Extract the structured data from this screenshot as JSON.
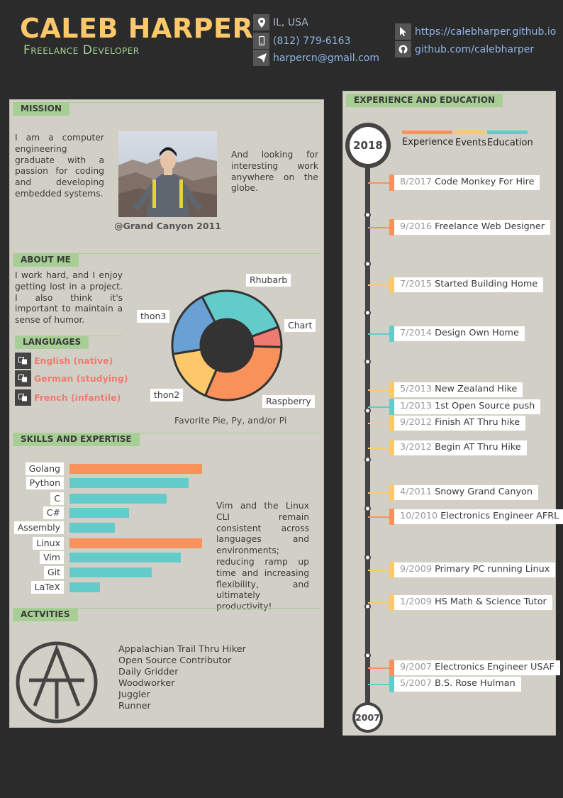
{
  "header": {
    "name": "CALEB HARPER",
    "title": "Freelance Developer",
    "contacts": {
      "location": "IL, USA",
      "phone": "(812) 779-6163",
      "email": "harpercn@gmail.com",
      "website": "https://calebharper.github.io",
      "github": "github.com/calebharper"
    },
    "icons": [
      "map-pin-icon",
      "phone-icon",
      "send-icon",
      "cursor-icon",
      "github-icon"
    ]
  },
  "colors": {
    "experience": "#f9915a",
    "events": "#fdc86a",
    "education": "#64cbcb",
    "section": "#a7cf95",
    "name": "#fdc86a"
  },
  "mission": {
    "heading": "MISSION",
    "text_left": "I am a computer engineering graduate with a passion for coding and developing embedded systems.",
    "text_right": "And looking for interesting work anywhere on the globe.",
    "caption": "@Grand Canyon 2011"
  },
  "about": {
    "heading": "ABOUT ME",
    "text": "I work hard, and I enjoy getting lost in a project. I also think it's important to maintain a sense of humor."
  },
  "languages": {
    "heading": "LANGUAGES",
    "items": [
      "English (native)",
      "German (studying)",
      "French (infantile)"
    ]
  },
  "chart_data": {
    "type": "pie",
    "title": "Favorite Pie, Py, and/or Pi",
    "slices": [
      {
        "label": "Chart",
        "value": 6,
        "color": "#ef7a72"
      },
      {
        "label": "Raspberry",
        "value": 31,
        "color": "#f9915a"
      },
      {
        "label": "thon2",
        "value": 16,
        "color": "#fdc86a"
      },
      {
        "label": "thon3",
        "value": 20,
        "color": "#6aa1d4"
      },
      {
        "label": "Rhubarb",
        "value": 27,
        "color": "#64cbcb"
      }
    ]
  },
  "skills": {
    "heading": "SKILLS AND EXPERTISE",
    "items": [
      {
        "name": "Golang",
        "level": 1.0,
        "kind": "experience"
      },
      {
        "name": "Python",
        "level": 0.9,
        "kind": "education"
      },
      {
        "name": "C",
        "level": 0.73,
        "kind": "education"
      },
      {
        "name": "C#",
        "level": 0.45,
        "kind": "education"
      },
      {
        "name": "Assembly",
        "level": 0.34,
        "kind": "education"
      },
      {
        "name": "Linux",
        "level": 1.0,
        "kind": "experience"
      },
      {
        "name": "Vim",
        "level": 0.84,
        "kind": "education"
      },
      {
        "name": "Git",
        "level": 0.62,
        "kind": "education"
      },
      {
        "name": "LaTeX",
        "level": 0.23,
        "kind": "education"
      }
    ],
    "note": "Vim and the Linux CLI remain consistent across languages and environments; reducing ramp up time and increasing flexibility, and ultimately productivity!"
  },
  "activities": {
    "heading": "ACTVITIES",
    "logo_text": "AT",
    "items": [
      "Appalachian Trail Thru Hiker",
      "Open Source Contributor",
      "Daily Gridder",
      "Woodworker",
      "Juggler",
      "Runner"
    ]
  },
  "timeline": {
    "heading": "EXPERIENCE AND EDUCATION",
    "start_year": "2018",
    "end_year": "2007",
    "legend": [
      "Experience",
      "Events",
      "Education"
    ],
    "items": [
      {
        "date": "8/2017",
        "text": "Code Monkey For Hire",
        "kind": "experience"
      },
      {
        "date": "9/2016",
        "text": "Freelance Web Designer",
        "kind": "experience"
      },
      {
        "date": "7/2015",
        "text": "Started Building Home",
        "kind": "events"
      },
      {
        "date": "7/2014",
        "text": "Design Own Home",
        "kind": "education"
      },
      {
        "date": "5/2013",
        "text": "New Zealand Hike",
        "kind": "events"
      },
      {
        "date": "1/2013",
        "text": "1st Open Source push",
        "kind": "education"
      },
      {
        "date": "9/2012",
        "text": "Finish AT Thru hike",
        "kind": "events"
      },
      {
        "date": "3/2012",
        "text": "Begin AT Thru Hike",
        "kind": "events"
      },
      {
        "date": "4/2011",
        "text": "Snowy Grand Canyon",
        "kind": "events"
      },
      {
        "date": "10/2010",
        "text": "Electronics Engineer AFRL",
        "kind": "experience"
      },
      {
        "date": "9/2009",
        "text": "Primary PC running Linux",
        "kind": "events"
      },
      {
        "date": "1/2009",
        "text": "HS Math & Science Tutor",
        "kind": "events"
      },
      {
        "date": "9/2007",
        "text": "Electronics Engineer USAF",
        "kind": "experience"
      },
      {
        "date": "5/2007",
        "text": "B.S. Rose Hulman",
        "kind": "education"
      }
    ]
  }
}
